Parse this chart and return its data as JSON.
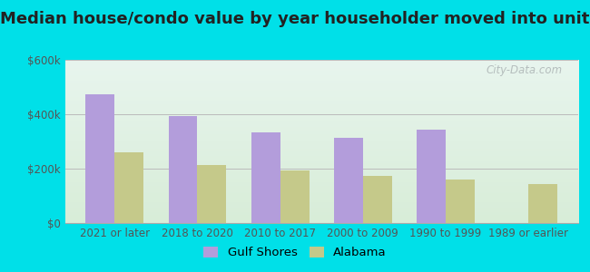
{
  "title": "Median house/condo value by year householder moved into unit",
  "categories": [
    "2021 or later",
    "2018 to 2020",
    "2010 to 2017",
    "2000 to 2009",
    "1990 to 1999",
    "1989 or earlier"
  ],
  "gulf_shores": [
    475000,
    395000,
    335000,
    315000,
    345000,
    null
  ],
  "alabama": [
    260000,
    215000,
    195000,
    175000,
    160000,
    145000
  ],
  "gulf_shores_color": "#b39ddb",
  "alabama_color": "#c5c98a",
  "ylim": [
    0,
    600000
  ],
  "yticks": [
    0,
    200000,
    400000,
    600000
  ],
  "ytick_labels": [
    "$0",
    "$200k",
    "$400k",
    "$600k"
  ],
  "background_outer": "#00e0e8",
  "background_inner_left": "#e8f5ee",
  "background_inner_right": "#d8edd8",
  "grid_color": "#bbbbbb",
  "title_fontsize": 13,
  "tick_fontsize": 8.5,
  "watermark_text": "City-Data.com",
  "legend_gulf": "Gulf Shores",
  "legend_alabama": "Alabama"
}
